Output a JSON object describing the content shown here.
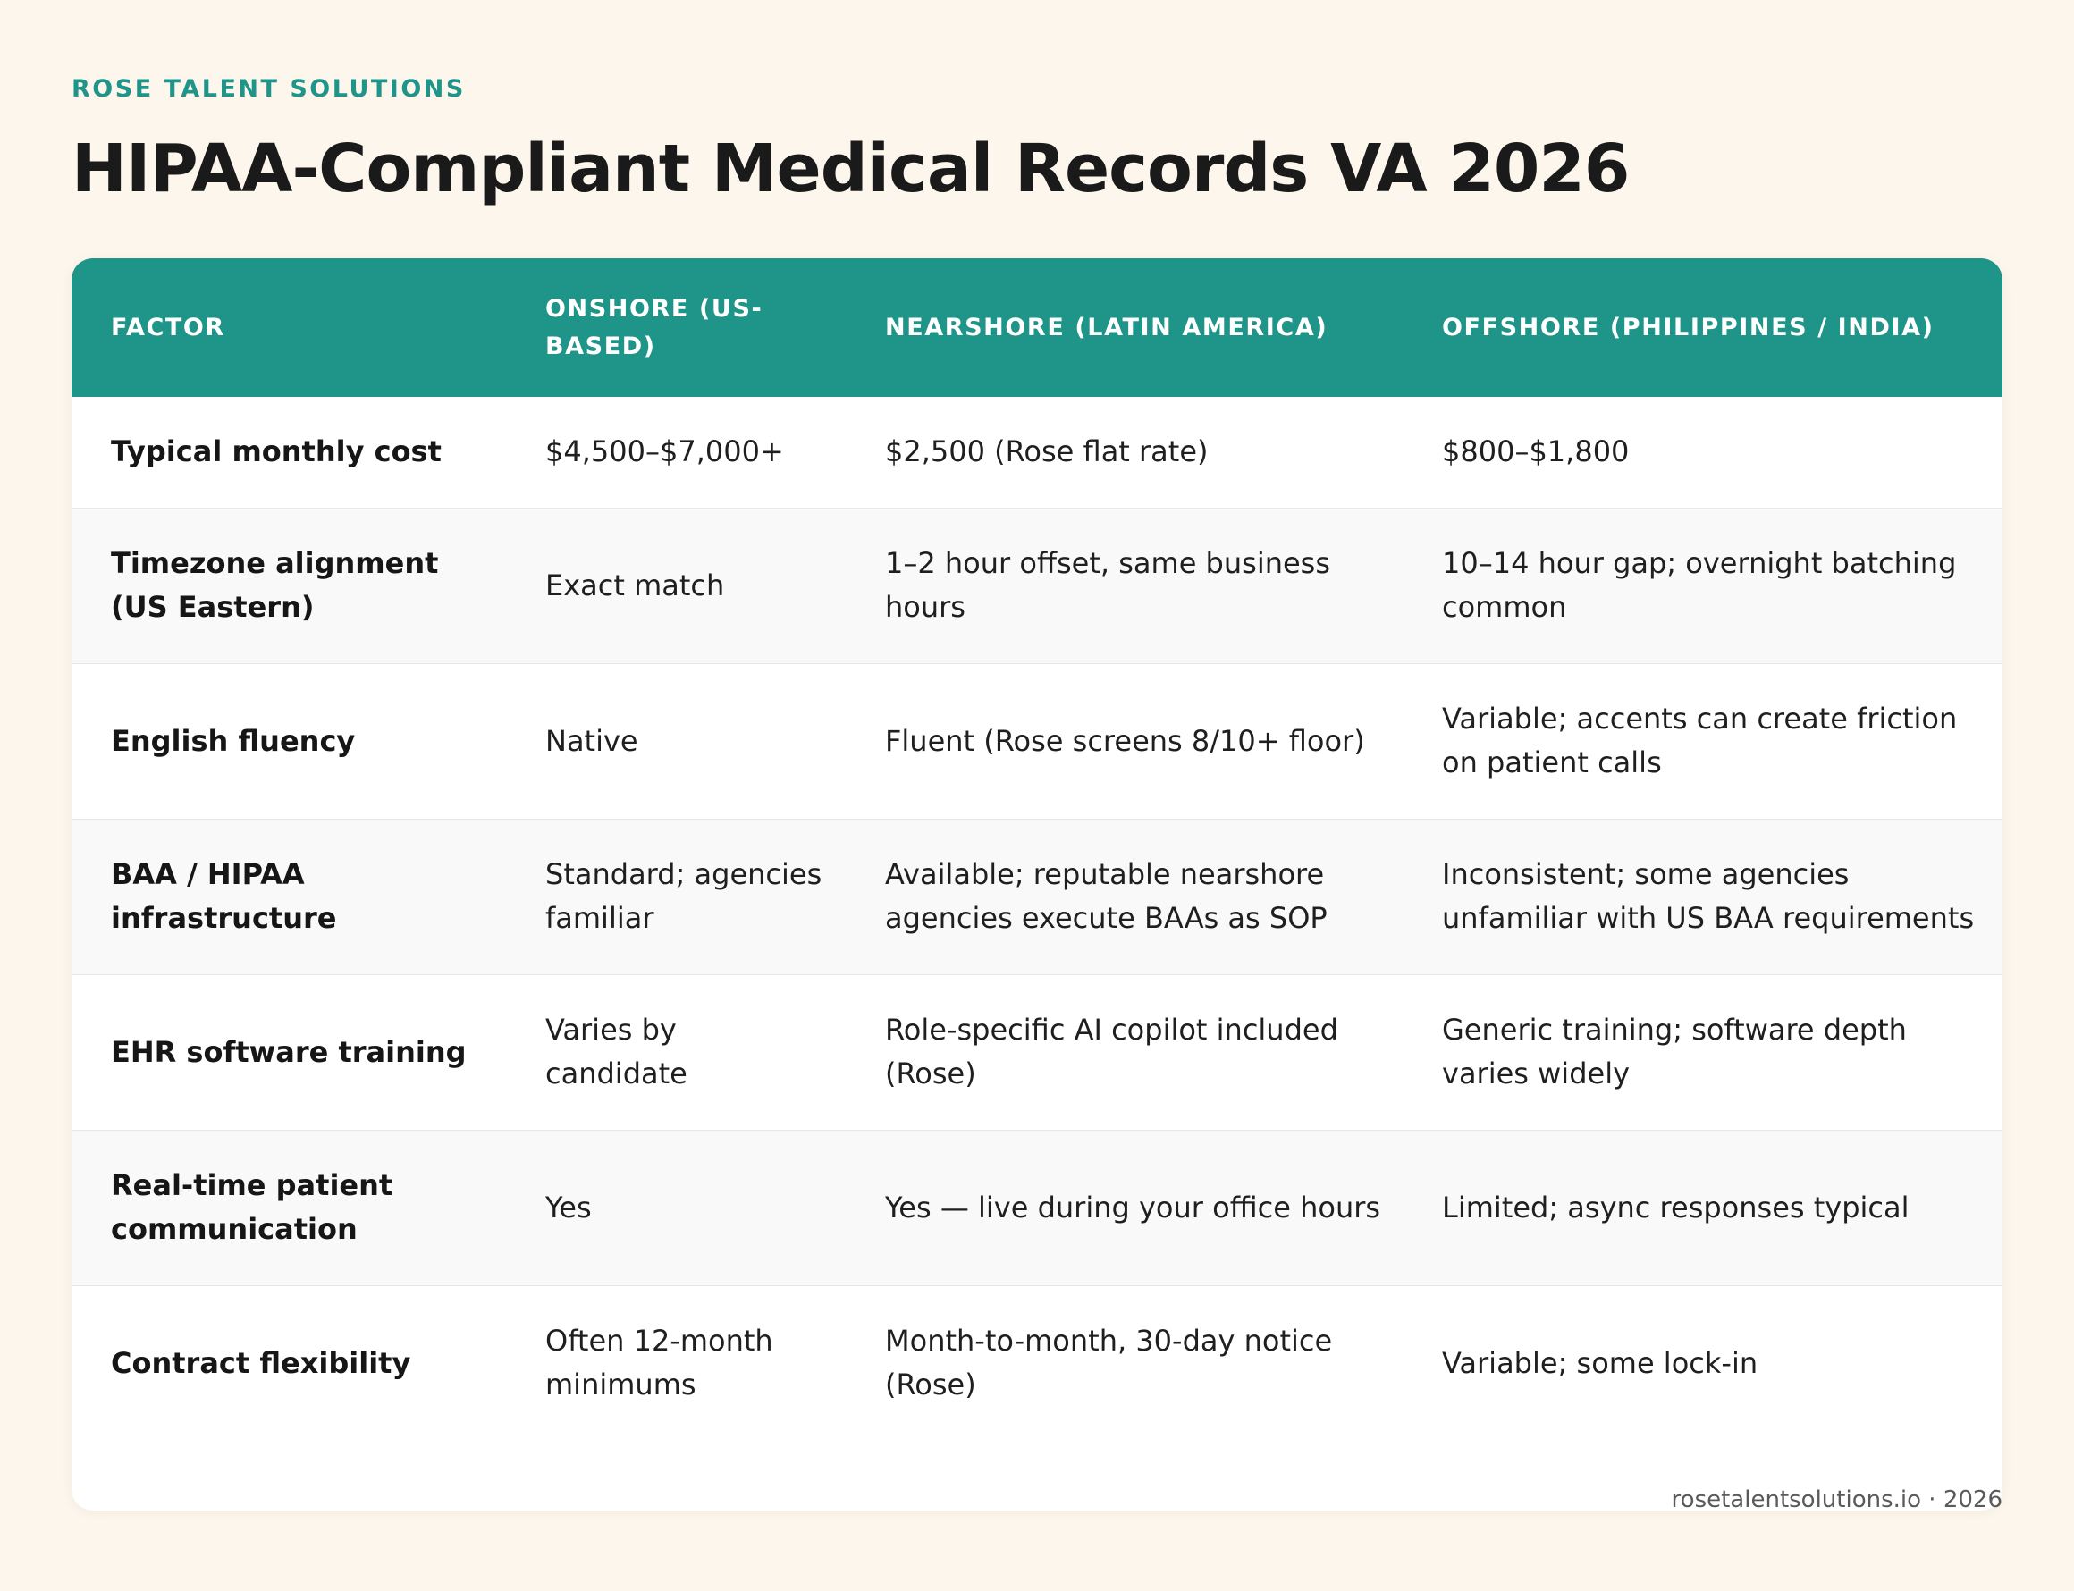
{
  "brand": "ROSE TALENT SOLUTIONS",
  "title": "HIPAA-Compliant Medical Records VA 2026",
  "table": {
    "headers": [
      "FACTOR",
      "ONSHORE (US-BASED)",
      "NEARSHORE (LATIN AMERICA)",
      "OFFSHORE (PHILIPPINES / INDIA)"
    ],
    "rows": [
      [
        "Typical monthly cost",
        "$4,500–$7,000+",
        "$2,500 (Rose flat rate)",
        "$800–$1,800"
      ],
      [
        "Timezone alignment (US Eastern)",
        "Exact match",
        "1–2 hour offset, same business hours",
        "10–14 hour gap; overnight batching common"
      ],
      [
        "English fluency",
        "Native",
        "Fluent (Rose screens 8/10+ floor)",
        "Variable; accents can create friction on patient calls"
      ],
      [
        "BAA / HIPAA infrastructure",
        "Standard; agencies familiar",
        "Available; reputable nearshore agencies execute BAAs as SOP",
        "Inconsistent; some agencies unfamiliar with US BAA requirements"
      ],
      [
        "EHR software training",
        "Varies by candidate",
        "Role-specific AI copilot included (Rose)",
        "Generic training; software depth varies widely"
      ],
      [
        "Real-time patient communication",
        "Yes",
        "Yes — live during your office hours",
        "Limited; async responses typical"
      ],
      [
        "Contract flexibility",
        "Often 12-month minimums",
        "Month-to-month, 30-day notice (Rose)",
        "Variable; some lock-in"
      ]
    ]
  },
  "footer": "rosetalentsolutions.io · 2026",
  "colors": {
    "accent": "#1f9488",
    "background": "#fdf6ec"
  }
}
